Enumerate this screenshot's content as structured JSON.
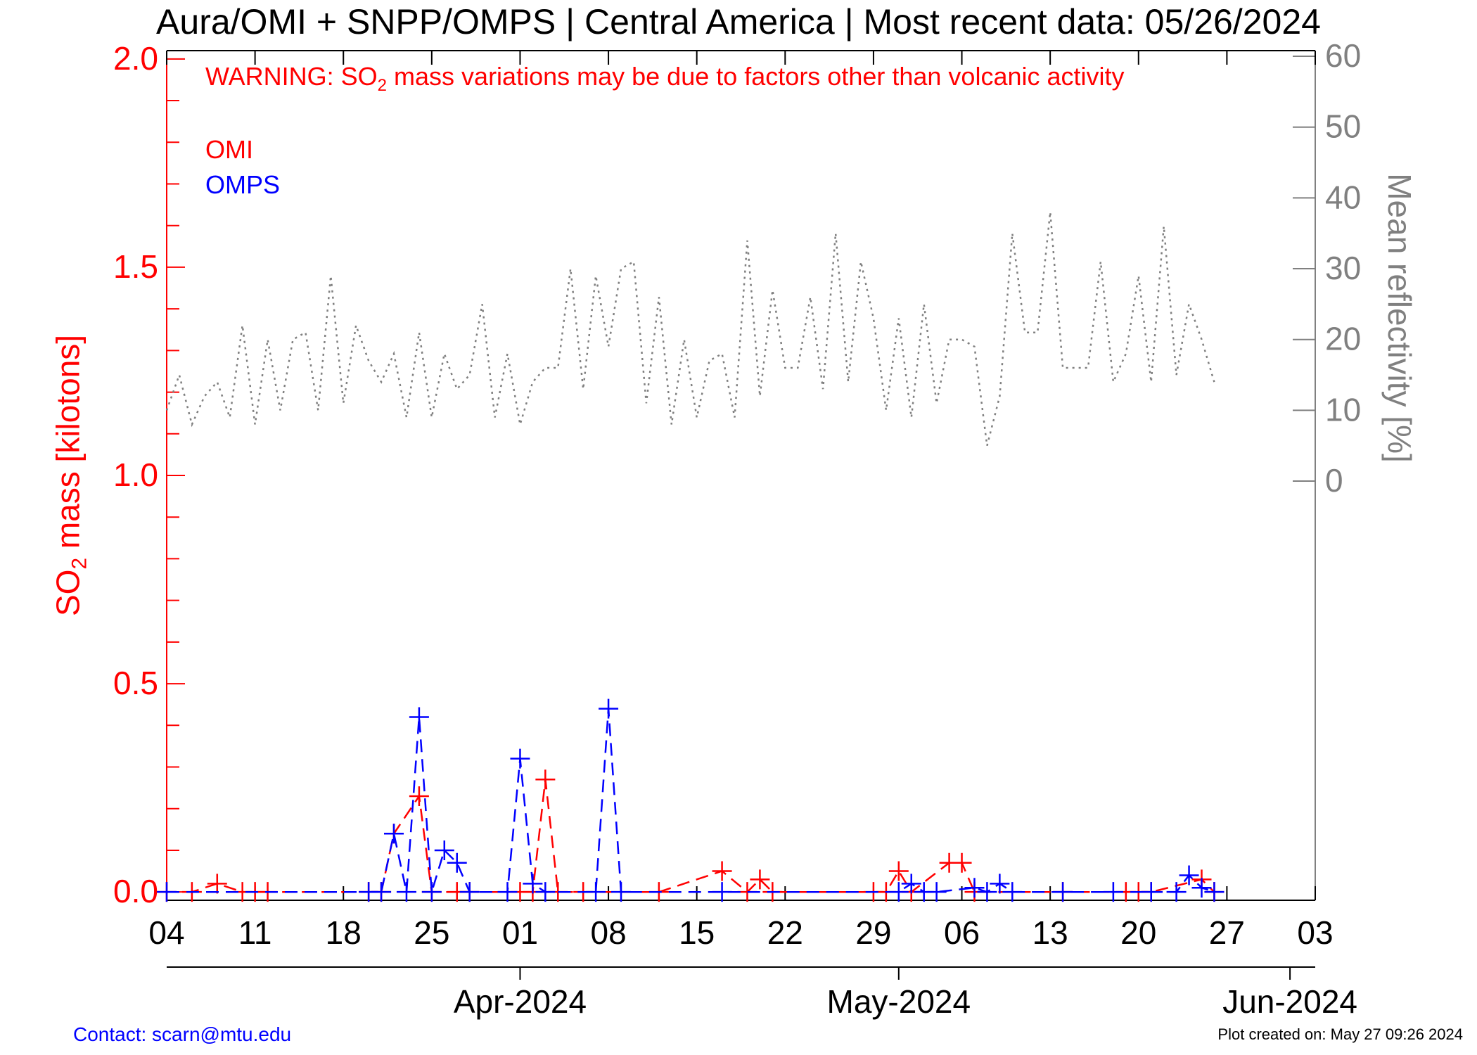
{
  "title": "Aura/OMI + SNPP/OMPS | Central America | Most recent data: 05/26/2024",
  "warning": {
    "prefix": "WARNING: SO",
    "subscript": "2",
    "suffix": " mass variations may be due to factors other than volcanic activity"
  },
  "legend": {
    "omi": "OMI",
    "omps": "OMPS"
  },
  "left_axis_label": {
    "prefix": "SO",
    "subscript": "2",
    "suffix": " mass [kilotons]"
  },
  "right_axis_label": "Mean reflectivity [%]",
  "footer": {
    "contact": "Contact: scarn@mtu.edu",
    "created": "Plot created on: May 27 09:26 2024"
  },
  "colors": {
    "omi": "#ff0000",
    "omps": "#0000ff",
    "reflectivity": "#808080",
    "axis": "#000000"
  },
  "chart_data": {
    "type": "line",
    "x_axis": {
      "range": [
        "2024-03-04",
        "2024-06-03"
      ],
      "day_ticks": [
        {
          "date": "2024-03-04",
          "label": "04"
        },
        {
          "date": "2024-03-11",
          "label": "11"
        },
        {
          "date": "2024-03-18",
          "label": "18"
        },
        {
          "date": "2024-03-25",
          "label": "25"
        },
        {
          "date": "2024-04-01",
          "label": "01"
        },
        {
          "date": "2024-04-08",
          "label": "08"
        },
        {
          "date": "2024-04-15",
          "label": "15"
        },
        {
          "date": "2024-04-22",
          "label": "22"
        },
        {
          "date": "2024-04-29",
          "label": "29"
        },
        {
          "date": "2024-05-06",
          "label": "06"
        },
        {
          "date": "2024-05-13",
          "label": "13"
        },
        {
          "date": "2024-05-20",
          "label": "20"
        },
        {
          "date": "2024-05-27",
          "label": "27"
        },
        {
          "date": "2024-06-03",
          "label": "03"
        }
      ],
      "month_ticks": [
        {
          "date": "2024-04-01",
          "label": "Apr-2024"
        },
        {
          "date": "2024-05-01",
          "label": "May-2024"
        },
        {
          "date": "2024-06-01",
          "label": "Jun-2024"
        }
      ]
    },
    "left_axis": {
      "range": [
        -0.02,
        2.02
      ],
      "ticks": [
        {
          "value": 0.0,
          "label": "0.0"
        },
        {
          "value": 0.5,
          "label": "0.5"
        },
        {
          "value": 1.0,
          "label": "1.0"
        },
        {
          "value": 1.5,
          "label": "1.5"
        },
        {
          "value": 2.0,
          "label": "2.0"
        }
      ]
    },
    "right_axis": {
      "range_at_left_bottom": -59.2,
      "range_at_left_top": 60.8,
      "ticks": [
        {
          "value": 0,
          "label": "0"
        },
        {
          "value": 10,
          "label": "10"
        },
        {
          "value": 20,
          "label": "20"
        },
        {
          "value": 30,
          "label": "30"
        },
        {
          "value": 40,
          "label": "40"
        },
        {
          "value": 50,
          "label": "50"
        },
        {
          "value": 60,
          "label": "60"
        }
      ]
    },
    "series": [
      {
        "name": "OMI",
        "axis": "left",
        "style": "dashed-plus",
        "points": [
          [
            "2024-03-04",
            0
          ],
          [
            "2024-03-06",
            0
          ],
          [
            "2024-03-08",
            0.02
          ],
          [
            "2024-03-10",
            0
          ],
          [
            "2024-03-11",
            0
          ],
          [
            "2024-03-12",
            0
          ],
          [
            "2024-03-20",
            0
          ],
          [
            "2024-03-21",
            0
          ],
          [
            "2024-03-22",
            0.14
          ],
          [
            "2024-03-24",
            0.23
          ],
          [
            "2024-03-25",
            0
          ],
          [
            "2024-03-27",
            0
          ],
          [
            "2024-03-28",
            0
          ],
          [
            "2024-04-01",
            0
          ],
          [
            "2024-04-02",
            0
          ],
          [
            "2024-04-03",
            0.27
          ],
          [
            "2024-04-04",
            0
          ],
          [
            "2024-04-06",
            0
          ],
          [
            "2024-04-12",
            0
          ],
          [
            "2024-04-17",
            0.05
          ],
          [
            "2024-04-19",
            0
          ],
          [
            "2024-04-20",
            0.03
          ],
          [
            "2024-04-21",
            0
          ],
          [
            "2024-04-29",
            0
          ],
          [
            "2024-04-30",
            0
          ],
          [
            "2024-05-01",
            0.05
          ],
          [
            "2024-05-02",
            0
          ],
          [
            "2024-05-05",
            0.07
          ],
          [
            "2024-05-06",
            0.07
          ],
          [
            "2024-05-07",
            0
          ],
          [
            "2024-05-14",
            0
          ],
          [
            "2024-05-19",
            0
          ],
          [
            "2024-05-20",
            0
          ],
          [
            "2024-05-21",
            0
          ],
          [
            "2024-05-25",
            0.03
          ],
          [
            "2024-05-26",
            0
          ]
        ]
      },
      {
        "name": "OMPS",
        "axis": "left",
        "style": "dashed-plus",
        "points": [
          [
            "2024-03-04",
            0
          ],
          [
            "2024-03-20",
            0
          ],
          [
            "2024-03-21",
            0
          ],
          [
            "2024-03-22",
            0.14
          ],
          [
            "2024-03-23",
            0
          ],
          [
            "2024-03-24",
            0.42
          ],
          [
            "2024-03-25",
            0
          ],
          [
            "2024-03-26",
            0.1
          ],
          [
            "2024-03-27",
            0.07
          ],
          [
            "2024-03-28",
            0
          ],
          [
            "2024-03-31",
            0
          ],
          [
            "2024-04-01",
            0.32
          ],
          [
            "2024-04-02",
            0.02
          ],
          [
            "2024-04-03",
            0
          ],
          [
            "2024-04-07",
            0
          ],
          [
            "2024-04-08",
            0.44
          ],
          [
            "2024-04-09",
            0
          ],
          [
            "2024-04-17",
            0
          ],
          [
            "2024-05-01",
            0
          ],
          [
            "2024-05-02",
            0.02
          ],
          [
            "2024-05-03",
            0
          ],
          [
            "2024-05-04",
            0
          ],
          [
            "2024-05-07",
            0.01
          ],
          [
            "2024-05-08",
            0
          ],
          [
            "2024-05-09",
            0.02
          ],
          [
            "2024-05-10",
            0
          ],
          [
            "2024-05-14",
            0
          ],
          [
            "2024-05-18",
            0
          ],
          [
            "2024-05-21",
            0
          ],
          [
            "2024-05-23",
            0
          ],
          [
            "2024-05-24",
            0.04
          ],
          [
            "2024-05-25",
            0.01
          ],
          [
            "2024-05-26",
            0
          ]
        ]
      },
      {
        "name": "Mean reflectivity",
        "axis": "right",
        "style": "dotted",
        "points": [
          [
            "2024-03-04",
            10
          ],
          [
            "2024-03-05",
            15
          ],
          [
            "2024-03-06",
            8
          ],
          [
            "2024-03-07",
            12
          ],
          [
            "2024-03-08",
            14
          ],
          [
            "2024-03-09",
            9
          ],
          [
            "2024-03-10",
            22
          ],
          [
            "2024-03-11",
            8
          ],
          [
            "2024-03-12",
            20
          ],
          [
            "2024-03-13",
            10
          ],
          [
            "2024-03-14",
            20
          ],
          [
            "2024-03-15",
            21
          ],
          [
            "2024-03-16",
            10
          ],
          [
            "2024-03-17",
            29
          ],
          [
            "2024-03-18",
            11
          ],
          [
            "2024-03-19",
            22
          ],
          [
            "2024-03-20",
            17
          ],
          [
            "2024-03-21",
            14
          ],
          [
            "2024-03-22",
            18
          ],
          [
            "2024-03-23",
            9
          ],
          [
            "2024-03-24",
            21
          ],
          [
            "2024-03-25",
            9
          ],
          [
            "2024-03-26",
            18
          ],
          [
            "2024-03-27",
            13
          ],
          [
            "2024-03-28",
            15
          ],
          [
            "2024-03-29",
            25
          ],
          [
            "2024-03-30",
            9
          ],
          [
            "2024-03-31",
            18
          ],
          [
            "2024-04-01",
            8
          ],
          [
            "2024-04-02",
            14
          ],
          [
            "2024-04-03",
            16
          ],
          [
            "2024-04-04",
            16
          ],
          [
            "2024-04-05",
            30
          ],
          [
            "2024-04-06",
            13
          ],
          [
            "2024-04-07",
            29
          ],
          [
            "2024-04-08",
            19
          ],
          [
            "2024-04-09",
            30
          ],
          [
            "2024-04-10",
            31
          ],
          [
            "2024-04-11",
            11
          ],
          [
            "2024-04-12",
            26
          ],
          [
            "2024-04-13",
            8
          ],
          [
            "2024-04-14",
            20
          ],
          [
            "2024-04-15",
            9
          ],
          [
            "2024-04-16",
            17
          ],
          [
            "2024-04-17",
            18
          ],
          [
            "2024-04-18",
            9
          ],
          [
            "2024-04-19",
            34
          ],
          [
            "2024-04-20",
            12
          ],
          [
            "2024-04-21",
            27
          ],
          [
            "2024-04-22",
            16
          ],
          [
            "2024-04-23",
            16
          ],
          [
            "2024-04-24",
            26
          ],
          [
            "2024-04-25",
            13
          ],
          [
            "2024-04-26",
            35
          ],
          [
            "2024-04-27",
            14
          ],
          [
            "2024-04-28",
            31
          ],
          [
            "2024-04-29",
            23
          ],
          [
            "2024-04-30",
            10
          ],
          [
            "2024-05-01",
            23
          ],
          [
            "2024-05-02",
            9
          ],
          [
            "2024-05-03",
            25
          ],
          [
            "2024-05-04",
            11
          ],
          [
            "2024-05-05",
            20
          ],
          [
            "2024-05-06",
            20
          ],
          [
            "2024-05-07",
            19
          ],
          [
            "2024-05-08",
            5
          ],
          [
            "2024-05-09",
            12
          ],
          [
            "2024-05-10",
            35
          ],
          [
            "2024-05-11",
            21
          ],
          [
            "2024-05-12",
            21
          ],
          [
            "2024-05-13",
            38
          ],
          [
            "2024-05-14",
            16
          ],
          [
            "2024-05-15",
            16
          ],
          [
            "2024-05-16",
            16
          ],
          [
            "2024-05-17",
            31
          ],
          [
            "2024-05-18",
            14
          ],
          [
            "2024-05-19",
            18
          ],
          [
            "2024-05-20",
            29
          ],
          [
            "2024-05-21",
            14
          ],
          [
            "2024-05-22",
            36
          ],
          [
            "2024-05-23",
            15
          ],
          [
            "2024-05-24",
            25
          ],
          [
            "2024-05-25",
            20
          ],
          [
            "2024-05-26",
            14
          ]
        ]
      }
    ]
  }
}
